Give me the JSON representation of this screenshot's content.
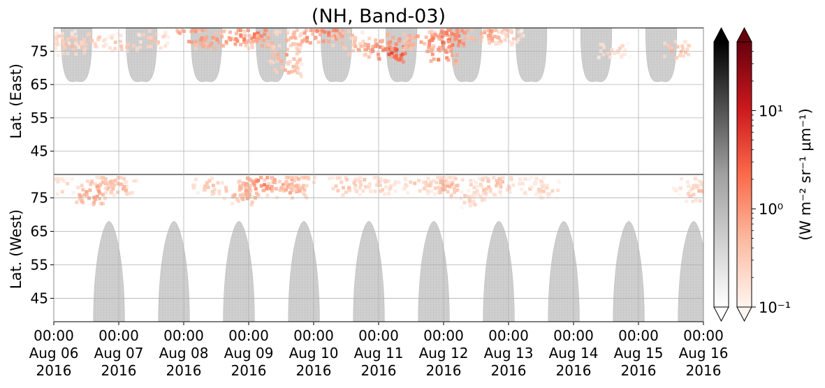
{
  "chart_data": {
    "type": "heatmap",
    "title": "(NH, Band-03)",
    "panels": [
      {
        "name": "east",
        "ylabel": "Lat. (East)",
        "yticks": [
          45,
          55,
          65,
          75
        ],
        "ylim": [
          38,
          82
        ]
      },
      {
        "name": "west",
        "ylabel": "Lat. (West)",
        "yticks": [
          75,
          65,
          55,
          45
        ],
        "ylim": [
          82,
          38
        ]
      }
    ],
    "x_ticks": [
      [
        "00:00",
        "Aug 06",
        "2016"
      ],
      [
        "00:00",
        "Aug 07",
        "2016"
      ],
      [
        "00:00",
        "Aug 08",
        "2016"
      ],
      [
        "00:00",
        "Aug 09",
        "2016"
      ],
      [
        "00:00",
        "Aug 10",
        "2016"
      ],
      [
        "00:00",
        "Aug 11",
        "2016"
      ],
      [
        "00:00",
        "Aug 12",
        "2016"
      ],
      [
        "00:00",
        "Aug 13",
        "2016"
      ],
      [
        "00:00",
        "Aug 14",
        "2016"
      ],
      [
        "00:00",
        "Aug 15",
        "2016"
      ],
      [
        "00:00",
        "Aug 16",
        "2016"
      ]
    ],
    "grid": true,
    "colorbar": {
      "label": "(W m⁻² sr⁻¹ μm⁻¹)",
      "scale": "log",
      "range": [
        0.1,
        50
      ],
      "ticks": [
        "10⁻¹",
        "10⁰",
        "10¹"
      ],
      "gray_cmap": [
        "#ffffff",
        "#000000"
      ],
      "red_cmap": [
        "#fff5f0",
        "#fcbba1",
        "#fb6a4a",
        "#cb181d",
        "#67000d"
      ],
      "extend": "both"
    },
    "gray_regions": {
      "description_values_in_days_since_Aug_06": true,
      "east": [
        {
          "center": 0.35,
          "halfwidth": 0.24,
          "lat_min": 66
        },
        {
          "center": 1.35,
          "halfwidth": 0.24,
          "lat_min": 66
        },
        {
          "center": 2.35,
          "halfwidth": 0.24,
          "lat_min": 66
        },
        {
          "center": 3.35,
          "halfwidth": 0.24,
          "lat_min": 66
        },
        {
          "center": 4.35,
          "halfwidth": 0.24,
          "lat_min": 66
        },
        {
          "center": 5.35,
          "halfwidth": 0.24,
          "lat_min": 66
        },
        {
          "center": 6.35,
          "halfwidth": 0.24,
          "lat_min": 66
        },
        {
          "center": 7.35,
          "halfwidth": 0.24,
          "lat_min": 66
        },
        {
          "center": 8.35,
          "halfwidth": 0.24,
          "lat_min": 66
        },
        {
          "center": 9.35,
          "halfwidth": 0.24,
          "lat_min": 66
        }
      ],
      "west": [
        {
          "center": 0.85,
          "halfwidth": 0.24,
          "lat_min": 68
        },
        {
          "center": 1.85,
          "halfwidth": 0.24,
          "lat_min": 68
        },
        {
          "center": 2.85,
          "halfwidth": 0.24,
          "lat_min": 68
        },
        {
          "center": 3.85,
          "halfwidth": 0.24,
          "lat_min": 68
        },
        {
          "center": 4.85,
          "halfwidth": 0.24,
          "lat_min": 68
        },
        {
          "center": 5.85,
          "halfwidth": 0.24,
          "lat_min": 68
        },
        {
          "center": 6.85,
          "halfwidth": 0.24,
          "lat_min": 68
        },
        {
          "center": 7.85,
          "halfwidth": 0.24,
          "lat_min": 68
        },
        {
          "center": 8.85,
          "halfwidth": 0.24,
          "lat_min": 68
        },
        {
          "center": 9.85,
          "halfwidth": 0.24,
          "lat_min": 68
        }
      ]
    },
    "emission_points": [
      {
        "panel": "east",
        "day": 0.1,
        "lat": 79,
        "v": 0.3
      },
      {
        "panel": "east",
        "day": 0.25,
        "lat": 77,
        "v": 0.5
      },
      {
        "panel": "east",
        "day": 0.55,
        "lat": 79,
        "v": 0.4
      },
      {
        "panel": "east",
        "day": 1.05,
        "lat": 78,
        "v": 0.4
      },
      {
        "panel": "east",
        "day": 1.5,
        "lat": 79,
        "v": 0.4
      },
      {
        "panel": "east",
        "day": 2.1,
        "lat": 80,
        "v": 1.5
      },
      {
        "panel": "east",
        "day": 2.4,
        "lat": 79,
        "v": 1.0
      },
      {
        "panel": "east",
        "day": 2.75,
        "lat": 79,
        "v": 1.2
      },
      {
        "panel": "east",
        "day": 3.0,
        "lat": 81,
        "v": 2.5
      },
      {
        "panel": "east",
        "day": 3.2,
        "lat": 79,
        "v": 0.8
      },
      {
        "panel": "east",
        "day": 3.6,
        "lat": 79,
        "v": 0.5
      },
      {
        "panel": "east",
        "day": 3.9,
        "lat": 80,
        "v": 1.2
      },
      {
        "panel": "east",
        "day": 4.2,
        "lat": 81,
        "v": 2.0
      },
      {
        "panel": "east",
        "day": 3.55,
        "lat": 70,
        "v": 0.6
      },
      {
        "panel": "east",
        "day": 3.55,
        "lat": 74,
        "v": 0.8
      },
      {
        "panel": "east",
        "day": 4.5,
        "lat": 79,
        "v": 0.6
      },
      {
        "panel": "east",
        "day": 4.75,
        "lat": 77,
        "v": 0.7
      },
      {
        "panel": "east",
        "day": 5.0,
        "lat": 76,
        "v": 1.8
      },
      {
        "panel": "east",
        "day": 5.2,
        "lat": 75,
        "v": 4.0
      },
      {
        "panel": "east",
        "day": 5.25,
        "lat": 78,
        "v": 1.2
      },
      {
        "panel": "east",
        "day": 5.6,
        "lat": 79,
        "v": 0.8
      },
      {
        "panel": "east",
        "day": 5.95,
        "lat": 74,
        "v": 1.5
      },
      {
        "panel": "east",
        "day": 5.9,
        "lat": 78,
        "v": 2.0
      },
      {
        "panel": "east",
        "day": 6.05,
        "lat": 79,
        "v": 3.0
      },
      {
        "panel": "east",
        "day": 6.1,
        "lat": 81,
        "v": 1.5
      },
      {
        "panel": "east",
        "day": 6.6,
        "lat": 80,
        "v": 0.8
      },
      {
        "panel": "east",
        "day": 6.75,
        "lat": 81,
        "v": 1.0
      },
      {
        "panel": "east",
        "day": 7.0,
        "lat": 80,
        "v": 0.3
      },
      {
        "panel": "east",
        "day": 8.6,
        "lat": 76,
        "v": 0.3
      },
      {
        "panel": "east",
        "day": 9.55,
        "lat": 76,
        "v": 0.5
      },
      {
        "panel": "west",
        "day": 0.05,
        "lat": 79,
        "v": 0.3
      },
      {
        "panel": "west",
        "day": 0.55,
        "lat": 76,
        "v": 0.9
      },
      {
        "panel": "west",
        "day": 0.65,
        "lat": 78,
        "v": 1.0
      },
      {
        "panel": "west",
        "day": 0.85,
        "lat": 80,
        "v": 0.5
      },
      {
        "panel": "west",
        "day": 1.0,
        "lat": 79,
        "v": 0.6
      },
      {
        "panel": "west",
        "day": 2.35,
        "lat": 79,
        "v": 0.4
      },
      {
        "panel": "west",
        "day": 2.8,
        "lat": 78,
        "v": 0.5
      },
      {
        "panel": "west",
        "day": 2.95,
        "lat": 76,
        "v": 0.7
      },
      {
        "panel": "west",
        "day": 3.05,
        "lat": 79,
        "v": 1.0
      },
      {
        "panel": "west",
        "day": 3.2,
        "lat": 80,
        "v": 1.5
      },
      {
        "panel": "west",
        "day": 3.55,
        "lat": 80,
        "v": 1.0
      },
      {
        "panel": "west",
        "day": 3.65,
        "lat": 78,
        "v": 0.8
      },
      {
        "panel": "west",
        "day": 3.75,
        "lat": 80,
        "v": 0.6
      },
      {
        "panel": "west",
        "day": 4.45,
        "lat": 79,
        "v": 0.5
      },
      {
        "panel": "west",
        "day": 4.85,
        "lat": 80,
        "v": 0.4
      },
      {
        "panel": "west",
        "day": 5.05,
        "lat": 79,
        "v": 0.3
      },
      {
        "panel": "west",
        "day": 5.6,
        "lat": 79,
        "v": 0.4
      },
      {
        "panel": "west",
        "day": 5.9,
        "lat": 80,
        "v": 0.5
      },
      {
        "panel": "west",
        "day": 6.05,
        "lat": 79,
        "v": 0.6
      },
      {
        "panel": "west",
        "day": 6.25,
        "lat": 78,
        "v": 0.5
      },
      {
        "panel": "west",
        "day": 6.4,
        "lat": 75,
        "v": 0.3
      },
      {
        "panel": "west",
        "day": 6.65,
        "lat": 79,
        "v": 0.4
      },
      {
        "panel": "west",
        "day": 6.8,
        "lat": 80,
        "v": 0.5
      },
      {
        "panel": "west",
        "day": 7.35,
        "lat": 79,
        "v": 0.3
      },
      {
        "panel": "west",
        "day": 7.55,
        "lat": 78,
        "v": 0.3
      },
      {
        "panel": "west",
        "day": 9.75,
        "lat": 79,
        "v": 0.3
      },
      {
        "panel": "west",
        "day": 9.95,
        "lat": 77,
        "v": 0.5
      }
    ]
  }
}
